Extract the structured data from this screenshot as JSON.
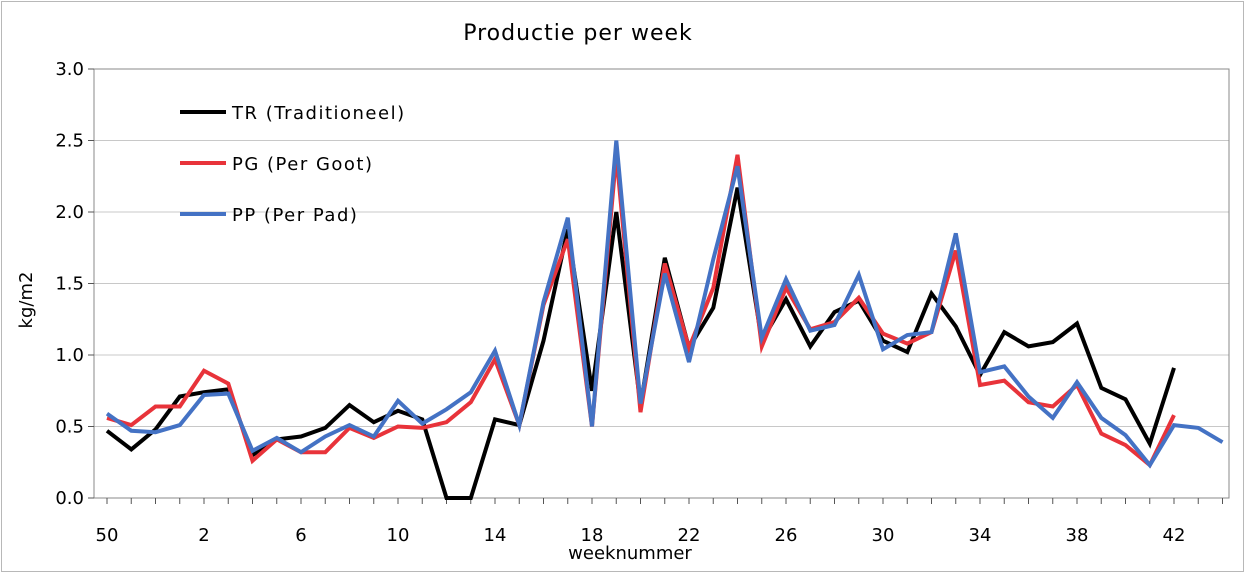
{
  "chart_data": {
    "type": "line",
    "title": "Productie per week",
    "xlabel": "weeknummer",
    "ylabel": "kg/m2",
    "ylim": [
      0,
      3.0
    ],
    "yticks": [
      "0.0",
      "0.5",
      "1.0",
      "1.5",
      "2.0",
      "2.5",
      "3.0"
    ],
    "x": [
      "50",
      "51",
      "52",
      "1",
      "2",
      "3",
      "4",
      "5",
      "6",
      "7",
      "8",
      "9",
      "10",
      "11",
      "12",
      "13",
      "14",
      "15",
      "16",
      "17",
      "18",
      "19",
      "20",
      "21",
      "22",
      "23",
      "24",
      "25",
      "26",
      "27",
      "28",
      "29",
      "30",
      "31",
      "32",
      "33",
      "34",
      "35",
      "36",
      "37",
      "38",
      "39",
      "40",
      "41",
      "42",
      "43",
      "44"
    ],
    "xtick_labels": [
      "50",
      "2",
      "6",
      "10",
      "14",
      "18",
      "22",
      "26",
      "30",
      "34",
      "38",
      "42"
    ],
    "grid": true,
    "legend": "top-left",
    "series": [
      {
        "name": "TR  (Traditioneel)",
        "color": "#000000",
        "values": [
          0.47,
          0.34,
          0.48,
          0.71,
          0.74,
          0.76,
          0.3,
          0.41,
          0.43,
          0.49,
          0.65,
          0.53,
          0.61,
          0.55,
          0.0,
          0.0,
          0.55,
          0.51,
          1.1,
          1.88,
          0.75,
          2.0,
          0.65,
          1.68,
          1.05,
          1.33,
          2.17,
          1.1,
          1.39,
          1.06,
          1.3,
          1.38,
          1.1,
          1.02,
          1.43,
          1.2,
          0.86,
          1.16,
          1.06,
          1.09,
          1.22,
          0.77,
          0.69,
          0.38,
          0.91,
          null,
          null
        ]
      },
      {
        "name": "PG  (Per Goot)",
        "color": "#e8333a",
        "values": [
          0.56,
          0.51,
          0.64,
          0.64,
          0.89,
          0.8,
          0.26,
          0.41,
          0.32,
          0.32,
          0.49,
          0.42,
          0.5,
          0.49,
          0.53,
          0.67,
          0.97,
          0.51,
          1.35,
          1.81,
          0.5,
          2.4,
          0.6,
          1.64,
          1.05,
          1.47,
          2.4,
          1.06,
          1.47,
          1.18,
          1.23,
          1.4,
          1.15,
          1.08,
          1.16,
          1.73,
          0.79,
          0.82,
          0.67,
          0.64,
          0.79,
          0.45,
          0.37,
          0.23,
          0.58,
          null,
          null
        ]
      },
      {
        "name": "PP  (Per Pad)",
        "color": "#4472c4",
        "values": [
          0.59,
          0.47,
          0.46,
          0.51,
          0.72,
          0.73,
          0.33,
          0.42,
          0.32,
          0.43,
          0.51,
          0.43,
          0.68,
          0.52,
          0.62,
          0.74,
          1.03,
          0.51,
          1.37,
          1.96,
          0.5,
          2.5,
          0.66,
          1.57,
          0.95,
          1.67,
          2.32,
          1.12,
          1.53,
          1.17,
          1.21,
          1.56,
          1.04,
          1.14,
          1.16,
          1.85,
          0.88,
          0.92,
          0.71,
          0.56,
          0.81,
          0.56,
          0.44,
          0.23,
          0.51,
          0.49,
          0.39
        ]
      }
    ]
  }
}
